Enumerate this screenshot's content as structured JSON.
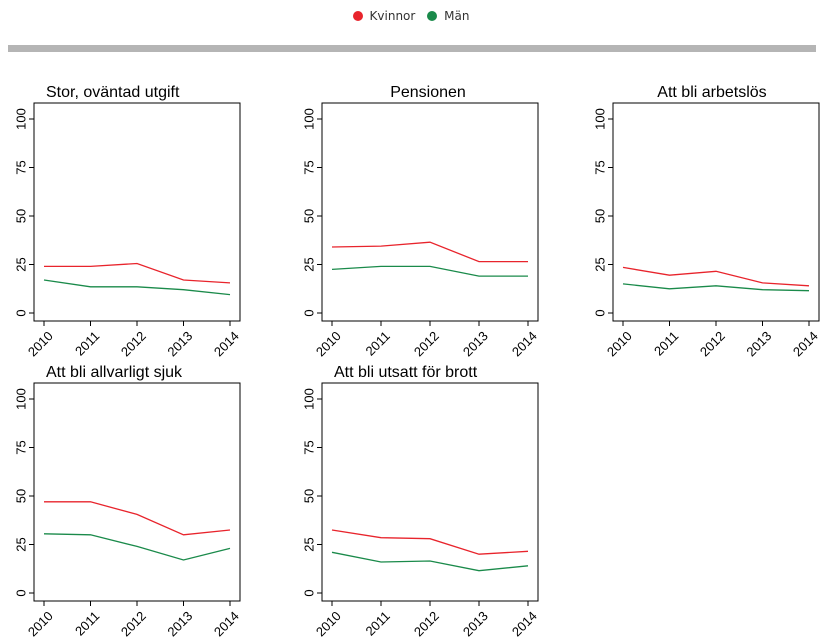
{
  "legend": {
    "women": {
      "label": "Kvinnor",
      "color": "#e8242c"
    },
    "men": {
      "label": "Män",
      "color": "#1a8a4a"
    }
  },
  "chart_data": [
    {
      "type": "line",
      "title": "Stor, oväntad utgift",
      "x": [
        2010,
        2011,
        2012,
        2013,
        2014
      ],
      "series": [
        {
          "name": "Kvinnor",
          "values": [
            24,
            24,
            25.5,
            17,
            15.5
          ]
        },
        {
          "name": "Män",
          "values": [
            17,
            13.5,
            13.5,
            12,
            9.5
          ]
        }
      ],
      "yticks": [
        0,
        25,
        50,
        75,
        100
      ],
      "ylim": [
        0,
        100
      ]
    },
    {
      "type": "line",
      "title": "Pensionen",
      "x": [
        2010,
        2011,
        2012,
        2013,
        2014
      ],
      "series": [
        {
          "name": "Kvinnor",
          "values": [
            34,
            34.5,
            36.5,
            26.5,
            26.5
          ]
        },
        {
          "name": "Män",
          "values": [
            22.5,
            24,
            24,
            19,
            19
          ]
        }
      ],
      "yticks": [
        0,
        25,
        50,
        75,
        100
      ],
      "ylim": [
        0,
        100
      ]
    },
    {
      "type": "line",
      "title": "Att bli arbetslös",
      "x": [
        2010,
        2011,
        2012,
        2013,
        2014
      ],
      "series": [
        {
          "name": "Kvinnor",
          "values": [
            23.5,
            19.5,
            21.5,
            15.5,
            14
          ]
        },
        {
          "name": "Män",
          "values": [
            15,
            12.5,
            14,
            12,
            11.5
          ]
        }
      ],
      "yticks": [
        0,
        25,
        50,
        75,
        100
      ],
      "ylim": [
        0,
        100
      ]
    },
    {
      "type": "line",
      "title": "Att bli allvarligt sjuk",
      "x": [
        2010,
        2011,
        2012,
        2013,
        2014
      ],
      "series": [
        {
          "name": "Kvinnor",
          "values": [
            47,
            47,
            40.5,
            30,
            32.5
          ]
        },
        {
          "name": "Män",
          "values": [
            30.5,
            30,
            24,
            17,
            23
          ]
        }
      ],
      "yticks": [
        0,
        25,
        50,
        75,
        100
      ],
      "ylim": [
        0,
        100
      ]
    },
    {
      "type": "line",
      "title": "Att bli utsatt för brott",
      "x": [
        2010,
        2011,
        2012,
        2013,
        2014
      ],
      "series": [
        {
          "name": "Kvinnor",
          "values": [
            32.5,
            28.5,
            28,
            20,
            21.5
          ]
        },
        {
          "name": "Män",
          "values": [
            21,
            16,
            16.5,
            11.5,
            14
          ]
        }
      ],
      "yticks": [
        0,
        25,
        50,
        75,
        100
      ],
      "ylim": [
        0,
        100
      ]
    }
  ]
}
